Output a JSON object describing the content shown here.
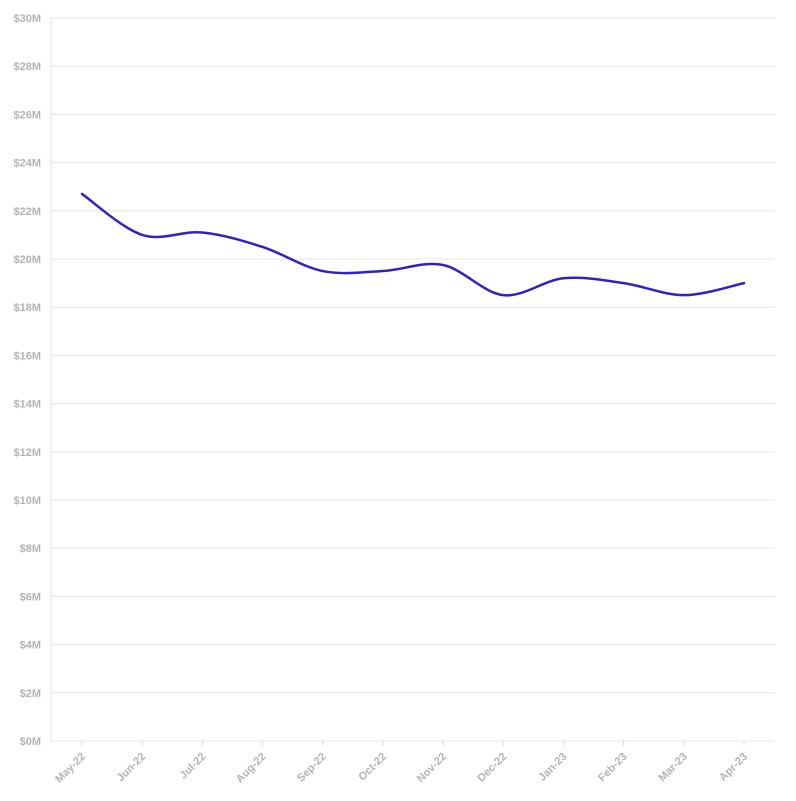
{
  "chart_data": {
    "type": "line",
    "x": [
      "May-22",
      "Jun-22",
      "Jul-22",
      "Aug-22",
      "Sep-22",
      "Oct-22",
      "Nov-22",
      "Dec-22",
      "Jan-23",
      "Feb-23",
      "Mar-23",
      "Apr-23"
    ],
    "series": [
      {
        "values": [
          22.7,
          21.0,
          21.1,
          20.5,
          19.5,
          19.5,
          19.75,
          18.5,
          19.2,
          19.0,
          18.5,
          19.0
        ],
        "color": "#2e22c4"
      }
    ],
    "y_ticks": [
      0,
      2,
      4,
      6,
      8,
      10,
      12,
      14,
      16,
      18,
      20,
      22,
      24,
      26,
      28,
      30
    ],
    "y_tick_labels": [
      "$0M",
      "$2M",
      "$4M",
      "$6M",
      "$8M",
      "$10M",
      "$12M",
      "$14M",
      "$16M",
      "$18M",
      "$20M",
      "$22M",
      "$24M",
      "$26M",
      "$28M",
      "$30M"
    ],
    "ylim": [
      0,
      30
    ],
    "y_unit": "millions USD",
    "grid": true,
    "legend": "none",
    "title": "",
    "xlabel": "",
    "ylabel": ""
  }
}
